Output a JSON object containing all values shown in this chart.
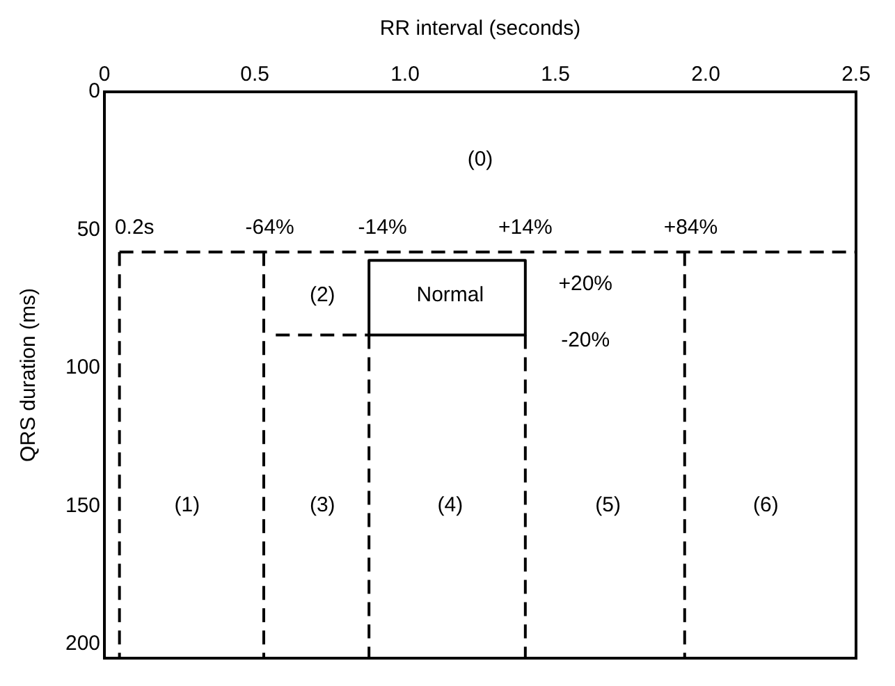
{
  "chart_data": {
    "type": "line",
    "xlabel": "RR interval (seconds)",
    "ylabel": "QRS duration (ms)",
    "xlim": [
      0,
      2.5
    ],
    "xticks": [
      0,
      0.5,
      {
        "value": 1,
        "label": "1.0"
      },
      1.5,
      {
        "value": 2,
        "label": "2.0"
      },
      2.5
    ],
    "ylim": [
      205,
      0
    ],
    "yticks": [
      0,
      50,
      100,
      150,
      200
    ],
    "grid": false,
    "legend": false,
    "marker": "none",
    "line_style": "dashed",
    "series": [
      {
        "color": "#000000",
        "x": [
          0.05,
          2.5
        ],
        "values": [
          58,
          58
        ]
      },
      {
        "color": "#000000",
        "x": [
          0.05,
          0.05
        ],
        "values": [
          58,
          205
        ]
      },
      {
        "color": "#000000",
        "x": [
          0.53,
          0.53
        ],
        "values": [
          58,
          205
        ]
      },
      {
        "color": "#000000",
        "x": [
          0.57,
          0.88
        ],
        "values": [
          88,
          88
        ]
      },
      {
        "color": "#000000",
        "x": [
          0.88,
          0.88
        ],
        "values": [
          88,
          205
        ]
      },
      {
        "color": "#000000",
        "x": [
          1.4,
          1.4
        ],
        "values": [
          88,
          205
        ]
      },
      {
        "color": "#000000",
        "x": [
          1.93,
          1.93
        ],
        "values": [
          58,
          205
        ]
      },
      {
        "color": "#000000",
        "line_style": "solid",
        "x": [
          0.88,
          0.88,
          1.4,
          1.4
        ],
        "values": [
          88,
          61,
          61,
          88
        ]
      },
      {
        "color": "#000000",
        "line_style": "solid",
        "x": [
          0.88,
          1.4
        ],
        "values": [
          88,
          88
        ]
      }
    ],
    "annotations": [
      "(0)",
      "0.2s",
      "-64%",
      "-14%",
      "+14%",
      "+84%",
      "(2)",
      "Normal",
      "+20%",
      "-20%",
      "(1)",
      "(3)",
      "(4)",
      "(5)",
      "(6)"
    ]
  }
}
